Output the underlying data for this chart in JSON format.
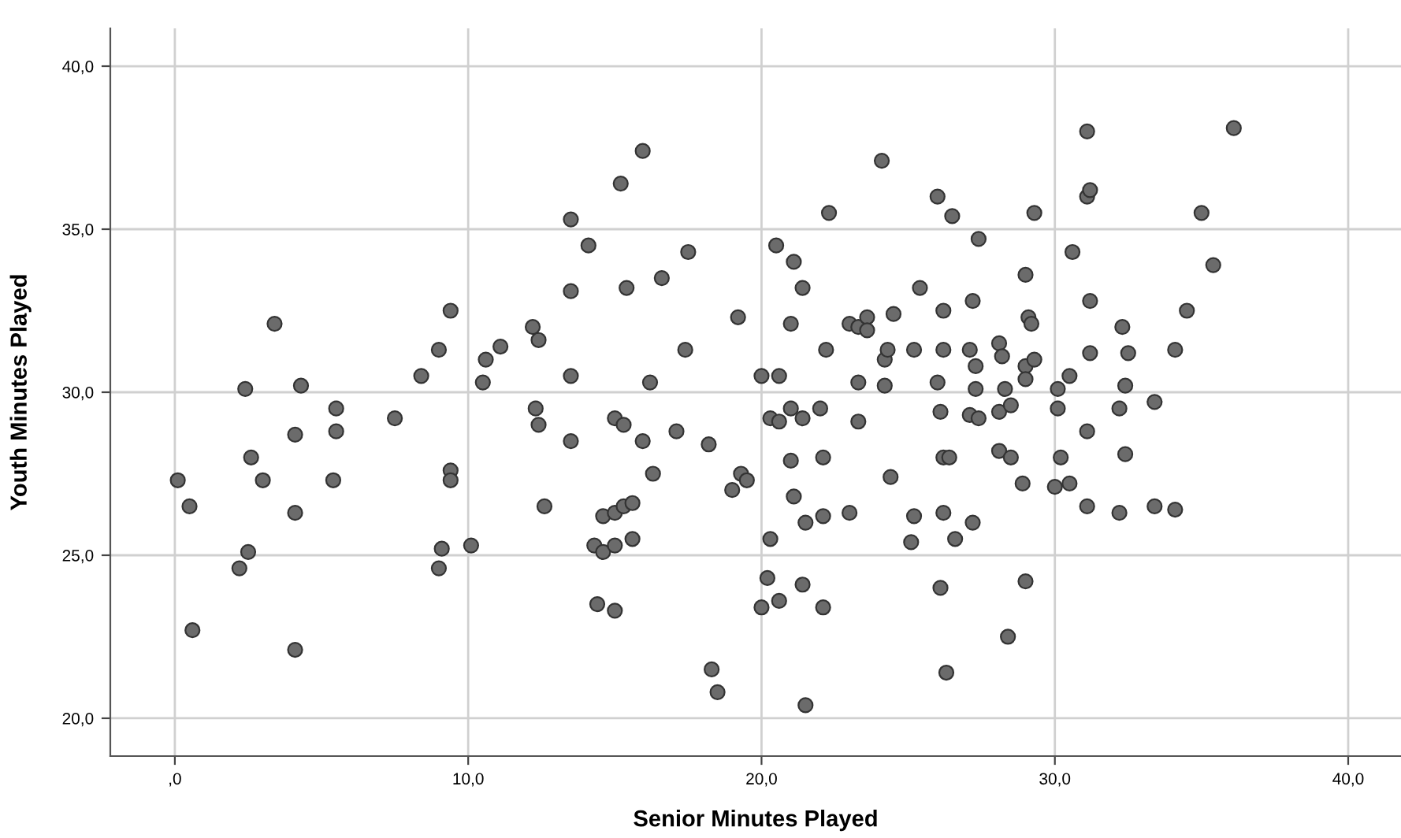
{
  "chart_data": {
    "type": "scatter",
    "xlabel": "Senior Minutes Played",
    "ylabel": "Youth Minutes Played",
    "xlim": [
      -2.2,
      41.8
    ],
    "ylim": [
      18.84,
      41.16
    ],
    "xticks": [
      {
        "value": 0,
        "label": ",0"
      },
      {
        "value": 10,
        "label": "10,0"
      },
      {
        "value": 20,
        "label": "20,0"
      },
      {
        "value": 30,
        "label": "30,0"
      },
      {
        "value": 40,
        "label": "40,0"
      }
    ],
    "yticks": [
      {
        "value": 20,
        "label": "20,0"
      },
      {
        "value": 25,
        "label": "25,0"
      },
      {
        "value": 30,
        "label": "30,0"
      },
      {
        "value": 35,
        "label": "35,0"
      },
      {
        "value": 40,
        "label": "40,0"
      }
    ],
    "grid": true,
    "marker": "circle",
    "series": [
      {
        "color": "#6b6b6b",
        "x": [
          0.1,
          0.5,
          0.6,
          2.2,
          2.4,
          2.5,
          2.6,
          3.0,
          3.4,
          4.1,
          4.1,
          4.1,
          4.3,
          5.4,
          5.5,
          5.5,
          7.5,
          8.4,
          9.0,
          9.0,
          9.1,
          9.4,
          9.4,
          9.4,
          10.1,
          10.5,
          10.6,
          11.1,
          12.2,
          12.4,
          12.3,
          12.4,
          12.6,
          13.5,
          13.5,
          13.5,
          13.5,
          14.1,
          14.3,
          14.4,
          14.6,
          14.6,
          15.0,
          15.0,
          15.0,
          15.0,
          15.2,
          15.3,
          15.3,
          15.4,
          15.6,
          15.6,
          15.95,
          15.95,
          16.2,
          16.3,
          16.6,
          17.1,
          17.4,
          17.5,
          18.2,
          18.3,
          18.5,
          19.0,
          19.2,
          19.3,
          19.5,
          20.0,
          20.0,
          20.2,
          20.3,
          20.3,
          20.5,
          20.6,
          20.6,
          20.6,
          21.0,
          21.0,
          21.0,
          21.1,
          21.1,
          21.4,
          21.4,
          21.4,
          21.5,
          21.5,
          22.0,
          22.1,
          22.1,
          22.1,
          22.2,
          22.3,
          23.0,
          23.0,
          23.3,
          23.6,
          23.6,
          23.3,
          23.3,
          24.1,
          24.2,
          24.3,
          24.2,
          24.4,
          24.5,
          25.1,
          25.2,
          25.2,
          25.4,
          26.0,
          26.0,
          26.1,
          26.1,
          26.2,
          26.2,
          26.2,
          26.2,
          26.3,
          26.4,
          26.5,
          26.6,
          27.1,
          27.1,
          27.2,
          27.2,
          27.3,
          27.3,
          27.4,
          27.4,
          28.1,
          28.1,
          28.1,
          28.2,
          28.3,
          28.4,
          28.5,
          28.5,
          28.9,
          29.0,
          29.0,
          29.0,
          29.0,
          29.1,
          29.2,
          29.3,
          29.3,
          30.0,
          30.1,
          30.1,
          30.2,
          30.5,
          30.5,
          30.6,
          31.1,
          31.1,
          31.1,
          31.1,
          31.2,
          31.2,
          31.2,
          32.2,
          32.2,
          32.3,
          32.4,
          32.4,
          32.5,
          33.4,
          33.4,
          34.1,
          34.1,
          34.5,
          35.0,
          35.4,
          36.1
        ],
        "values": [
          27.3,
          26.5,
          22.7,
          24.6,
          30.1,
          25.1,
          28.0,
          27.3,
          32.1,
          28.7,
          26.3,
          22.1,
          30.2,
          27.3,
          29.5,
          28.8,
          29.2,
          30.5,
          31.3,
          24.6,
          25.2,
          32.5,
          27.6,
          27.3,
          25.3,
          30.3,
          31.0,
          31.4,
          32.0,
          31.6,
          29.5,
          29.0,
          26.5,
          35.3,
          33.1,
          30.5,
          28.5,
          34.5,
          25.3,
          23.5,
          25.1,
          26.2,
          23.3,
          29.2,
          26.3,
          25.3,
          36.4,
          29.0,
          26.5,
          33.2,
          25.5,
          26.6,
          37.4,
          28.5,
          30.3,
          27.5,
          33.5,
          28.8,
          31.3,
          34.3,
          28.4,
          21.5,
          20.8,
          27.0,
          32.3,
          27.5,
          27.3,
          30.5,
          23.4,
          24.3,
          25.5,
          29.2,
          34.5,
          30.5,
          29.1,
          23.6,
          32.1,
          29.5,
          27.9,
          34.0,
          26.8,
          33.2,
          29.2,
          24.1,
          26.0,
          20.4,
          29.5,
          28.0,
          26.2,
          23.4,
          31.3,
          35.5,
          26.3,
          32.1,
          32.0,
          32.3,
          31.9,
          30.3,
          29.1,
          37.1,
          31.0,
          31.3,
          30.2,
          27.4,
          32.4,
          25.4,
          31.3,
          26.2,
          33.2,
          36.0,
          30.3,
          29.4,
          24.0,
          32.5,
          31.3,
          28.0,
          26.3,
          21.4,
          28.0,
          35.4,
          25.5,
          31.3,
          29.3,
          32.8,
          26.0,
          30.8,
          30.1,
          29.2,
          34.7,
          31.5,
          28.2,
          29.4,
          31.1,
          30.1,
          22.5,
          28.0,
          29.6,
          27.2,
          33.6,
          30.8,
          30.4,
          24.2,
          32.3,
          32.1,
          31.0,
          35.5,
          27.1,
          30.1,
          29.5,
          28.0,
          30.5,
          27.2,
          34.3,
          38.0,
          28.8,
          26.5,
          36.0,
          36.2,
          32.8,
          31.2,
          29.5,
          26.3,
          32.0,
          30.2,
          28.1,
          31.2,
          29.7,
          26.5,
          31.3,
          26.4,
          32.5,
          35.5,
          33.9,
          38.1
        ]
      }
    ]
  }
}
